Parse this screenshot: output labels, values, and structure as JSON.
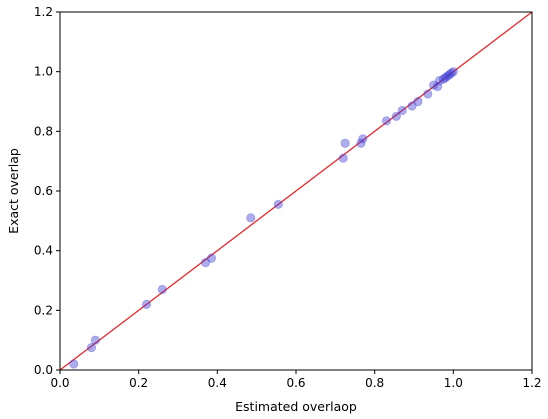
{
  "chart_data": {
    "type": "scatter",
    "xlabel": "Estimated overlaop",
    "ylabel": "Exact overlap",
    "xlim": [
      0.0,
      1.2
    ],
    "ylim": [
      0.0,
      1.2
    ],
    "xticks": [
      "0.0",
      "0.2",
      "0.4",
      "0.6",
      "0.8",
      "1.0",
      "1.2"
    ],
    "yticks": [
      "0.0",
      "0.2",
      "0.4",
      "0.6",
      "0.8",
      "1.0",
      "1.2"
    ],
    "grid": false,
    "series": [
      {
        "points": [
          [
            0.035,
            0.02
          ],
          [
            0.08,
            0.075
          ],
          [
            0.09,
            0.1
          ],
          [
            0.22,
            0.22
          ],
          [
            0.26,
            0.27
          ],
          [
            0.37,
            0.36
          ],
          [
            0.385,
            0.375
          ],
          [
            0.485,
            0.51
          ],
          [
            0.555,
            0.555
          ],
          [
            0.72,
            0.71
          ],
          [
            0.725,
            0.76
          ],
          [
            0.765,
            0.76
          ],
          [
            0.77,
            0.775
          ],
          [
            0.83,
            0.835
          ],
          [
            0.855,
            0.85
          ],
          [
            0.87,
            0.87
          ],
          [
            0.895,
            0.885
          ],
          [
            0.91,
            0.9
          ],
          [
            0.935,
            0.925
          ],
          [
            0.95,
            0.955
          ],
          [
            0.96,
            0.95
          ],
          [
            0.965,
            0.97
          ],
          [
            0.975,
            0.975
          ],
          [
            0.98,
            0.98
          ],
          [
            0.985,
            0.985
          ],
          [
            0.99,
            0.99
          ],
          [
            0.995,
            0.995
          ],
          [
            1.0,
            1.0
          ]
        ],
        "color": "#3b3bd6"
      }
    ],
    "reference_line": {
      "from": [
        0.0,
        0.0
      ],
      "to": [
        1.2,
        1.2
      ],
      "color": "#e8272a"
    }
  }
}
